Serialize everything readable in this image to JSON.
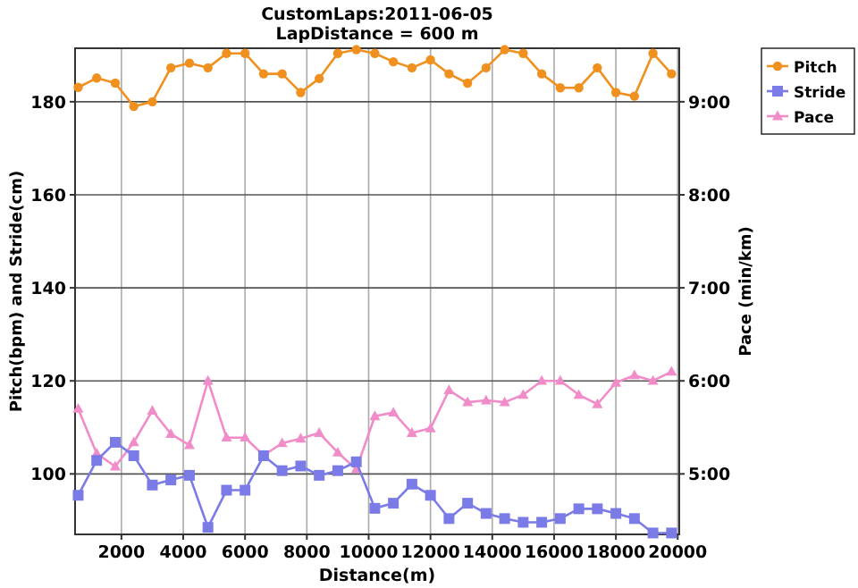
{
  "chart_data": {
    "type": "line",
    "title": "CustomLaps:2011-06-05",
    "subtitle": "LapDistance = 600 m",
    "xlabel": "Distance(m)",
    "ylabel": "Pitch(bpm) and Stride(cm)",
    "y2label": "Pace (min/km)",
    "x": [
      600,
      1200,
      1800,
      2400,
      3000,
      3600,
      4200,
      4800,
      5400,
      6000,
      6600,
      7200,
      7800,
      8400,
      9000,
      9600,
      10200,
      10800,
      11400,
      12000,
      12600,
      13200,
      13800,
      14400,
      15000,
      15600,
      16200,
      16800,
      17400,
      18000,
      18600,
      19200,
      19800
    ],
    "xlim": [
      500,
      20050
    ],
    "xticks": [
      2000,
      4000,
      6000,
      8000,
      10000,
      12000,
      14000,
      16000,
      18000,
      20000
    ],
    "ylim": [
      87,
      191.5
    ],
    "yticks": [
      100,
      120,
      140,
      160,
      180
    ],
    "y2lim": [
      4.35,
      9.575
    ],
    "y2ticks": [
      {
        "value": 5,
        "label": "5:00"
      },
      {
        "value": 6,
        "label": "6:00"
      },
      {
        "value": 7,
        "label": "7:00"
      },
      {
        "value": 8,
        "label": "8:00"
      },
      {
        "value": 9,
        "label": "9:00"
      }
    ],
    "grid": true,
    "legend": "top right",
    "series": [
      {
        "name": "Pitch",
        "color": "#f0901e",
        "marker": "circle",
        "values": [
          183.1,
          185.1,
          184,
          179,
          180,
          187.3,
          188.3,
          187.3,
          190.4,
          190.4,
          186,
          186,
          182,
          185,
          190.4,
          191.2,
          190.4,
          188.6,
          187.3,
          189,
          186,
          184,
          187.3,
          191.2,
          190.4,
          186,
          183,
          183,
          187.3,
          182,
          181.2,
          190.4,
          186
        ]
      },
      {
        "name": "Stride",
        "color": "#7b7be8",
        "marker": "square",
        "values": [
          95.4,
          102.9,
          106.8,
          103.9,
          97.6,
          98.7,
          99.7,
          88.5,
          96.5,
          96.5,
          103.9,
          100.7,
          101.7,
          99.7,
          100.7,
          102.6,
          92.6,
          93.7,
          97.8,
          95.4,
          90.4,
          93.7,
          91.5,
          90.4,
          89.6,
          89.6,
          90.4,
          92.5,
          92.5,
          91.5,
          90.4,
          87.3,
          87.3
        ]
      },
      {
        "name": "Pace",
        "color": "#f08cc8",
        "marker": "triangle",
        "axis": "y2",
        "values": [
          5.7,
          5.22,
          5.08,
          5.34,
          5.68,
          5.43,
          5.31,
          6.0,
          5.39,
          5.39,
          5.2,
          5.33,
          5.38,
          5.44,
          5.23,
          5.05,
          5.62,
          5.66,
          5.44,
          5.49,
          5.9,
          5.77,
          5.79,
          5.77,
          5.85,
          6.0,
          6.0,
          5.85,
          5.75,
          5.98,
          6.06,
          6.0,
          6.1
        ]
      }
    ]
  }
}
